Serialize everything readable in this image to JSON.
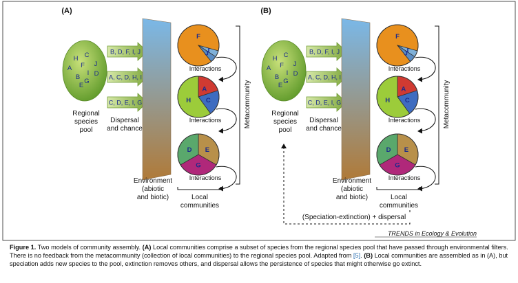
{
  "panels": [
    {
      "label": "(A)",
      "pool_letters": [
        "H",
        "C",
        "A",
        "F",
        "J",
        "D",
        "B",
        "I",
        "G",
        "E"
      ],
      "pool_label": [
        "Regional",
        "species",
        "pool"
      ],
      "arrows": [
        "B, D, F, I, J",
        "A, C, D, H, I",
        "C, D, E, I, G"
      ],
      "dispersal_label": [
        "Dispersal",
        "and chance"
      ],
      "environment_label": [
        "Environment",
        "(abiotic",
        "and biotic)"
      ],
      "communities": [
        {
          "species": [
            "F",
            "I",
            "J"
          ],
          "fractions": [
            0.9,
            0.05,
            0.05
          ],
          "colors": [
            "#e8901e",
            "#7fb0d8",
            "#5a8cc4"
          ],
          "interactions": "Interactions"
        },
        {
          "species": [
            "H",
            "A",
            "C"
          ],
          "fractions": [
            0.6,
            0.2,
            0.2
          ],
          "colors": [
            "#9ccc3a",
            "#d03a32",
            "#3e6cc0"
          ],
          "interactions": "Interactions"
        },
        {
          "species": [
            "E",
            "G",
            "D"
          ],
          "fractions": [
            0.333,
            0.334,
            0.333
          ],
          "colors": [
            "#b8904a",
            "#b0287a",
            "#5aa86c"
          ],
          "interactions": "Interactions"
        }
      ],
      "metacommunity_label": "Metacommunity",
      "local_label": [
        "Local",
        "communities"
      ]
    },
    {
      "label": "(B)",
      "pool_letters": [
        "H",
        "C",
        "A",
        "F",
        "J",
        "D",
        "B",
        "I",
        "G",
        "E"
      ],
      "pool_label": [
        "Regional",
        "species",
        "pool"
      ],
      "arrows": [
        "B, D, F, I, J",
        "A, C, D, H, I",
        "C, D, E, I, G"
      ],
      "dispersal_label": [
        "Dispersal",
        "and chance"
      ],
      "environment_label": [
        "Environment",
        "(abiotic",
        "and biotic)"
      ],
      "communities": [
        {
          "species": [
            "F",
            "I",
            "J"
          ],
          "fractions": [
            0.9,
            0.05,
            0.05
          ],
          "colors": [
            "#e8901e",
            "#7fb0d8",
            "#5a8cc4"
          ],
          "interactions": "Interactions"
        },
        {
          "species": [
            "H",
            "A",
            "C"
          ],
          "fractions": [
            0.6,
            0.2,
            0.2
          ],
          "colors": [
            "#9ccc3a",
            "#d03a32",
            "#3e6cc0"
          ],
          "interactions": "Interactions"
        },
        {
          "species": [
            "E",
            "G",
            "D"
          ],
          "fractions": [
            0.333,
            0.334,
            0.333
          ],
          "colors": [
            "#b8904a",
            "#b0287a",
            "#5aa86c"
          ],
          "interactions": "Interactions"
        }
      ],
      "metacommunity_label": "Metacommunity",
      "local_label": [
        "Local",
        "communities"
      ],
      "feedback_label": "(Speciation-extinction) + dispersal"
    }
  ],
  "trends_label": "TRENDS in Ecology & Evolution",
  "caption": {
    "lead": "Figure 1.",
    "text1": " Two models of community assembly. ",
    "a_label": "(A)",
    "text2": " Local communities comprise a subset of species from the regional species pool that have passed through environmental filters. There is no feedback from the metacommunity (collection of local communities) to the regional species pool. Adapted from ",
    "ref": "[5]",
    "text3": ". ",
    "b_label": "(B)",
    "text4": " Local communities are assembled as in (A), but speciation adds new species to the pool, extinction removes others, and dispersal allows the persistence of species that might otherwise go extinct."
  },
  "colors": {
    "pool_light": "#c8e07a",
    "pool_dark": "#5f9a2a",
    "arrow_light": "#d6e8a8",
    "arrow_dark": "#7fa83c",
    "env_top": "#7ab8e8",
    "env_bottom": "#b07a38",
    "text_letters": "#1a2a8c"
  }
}
